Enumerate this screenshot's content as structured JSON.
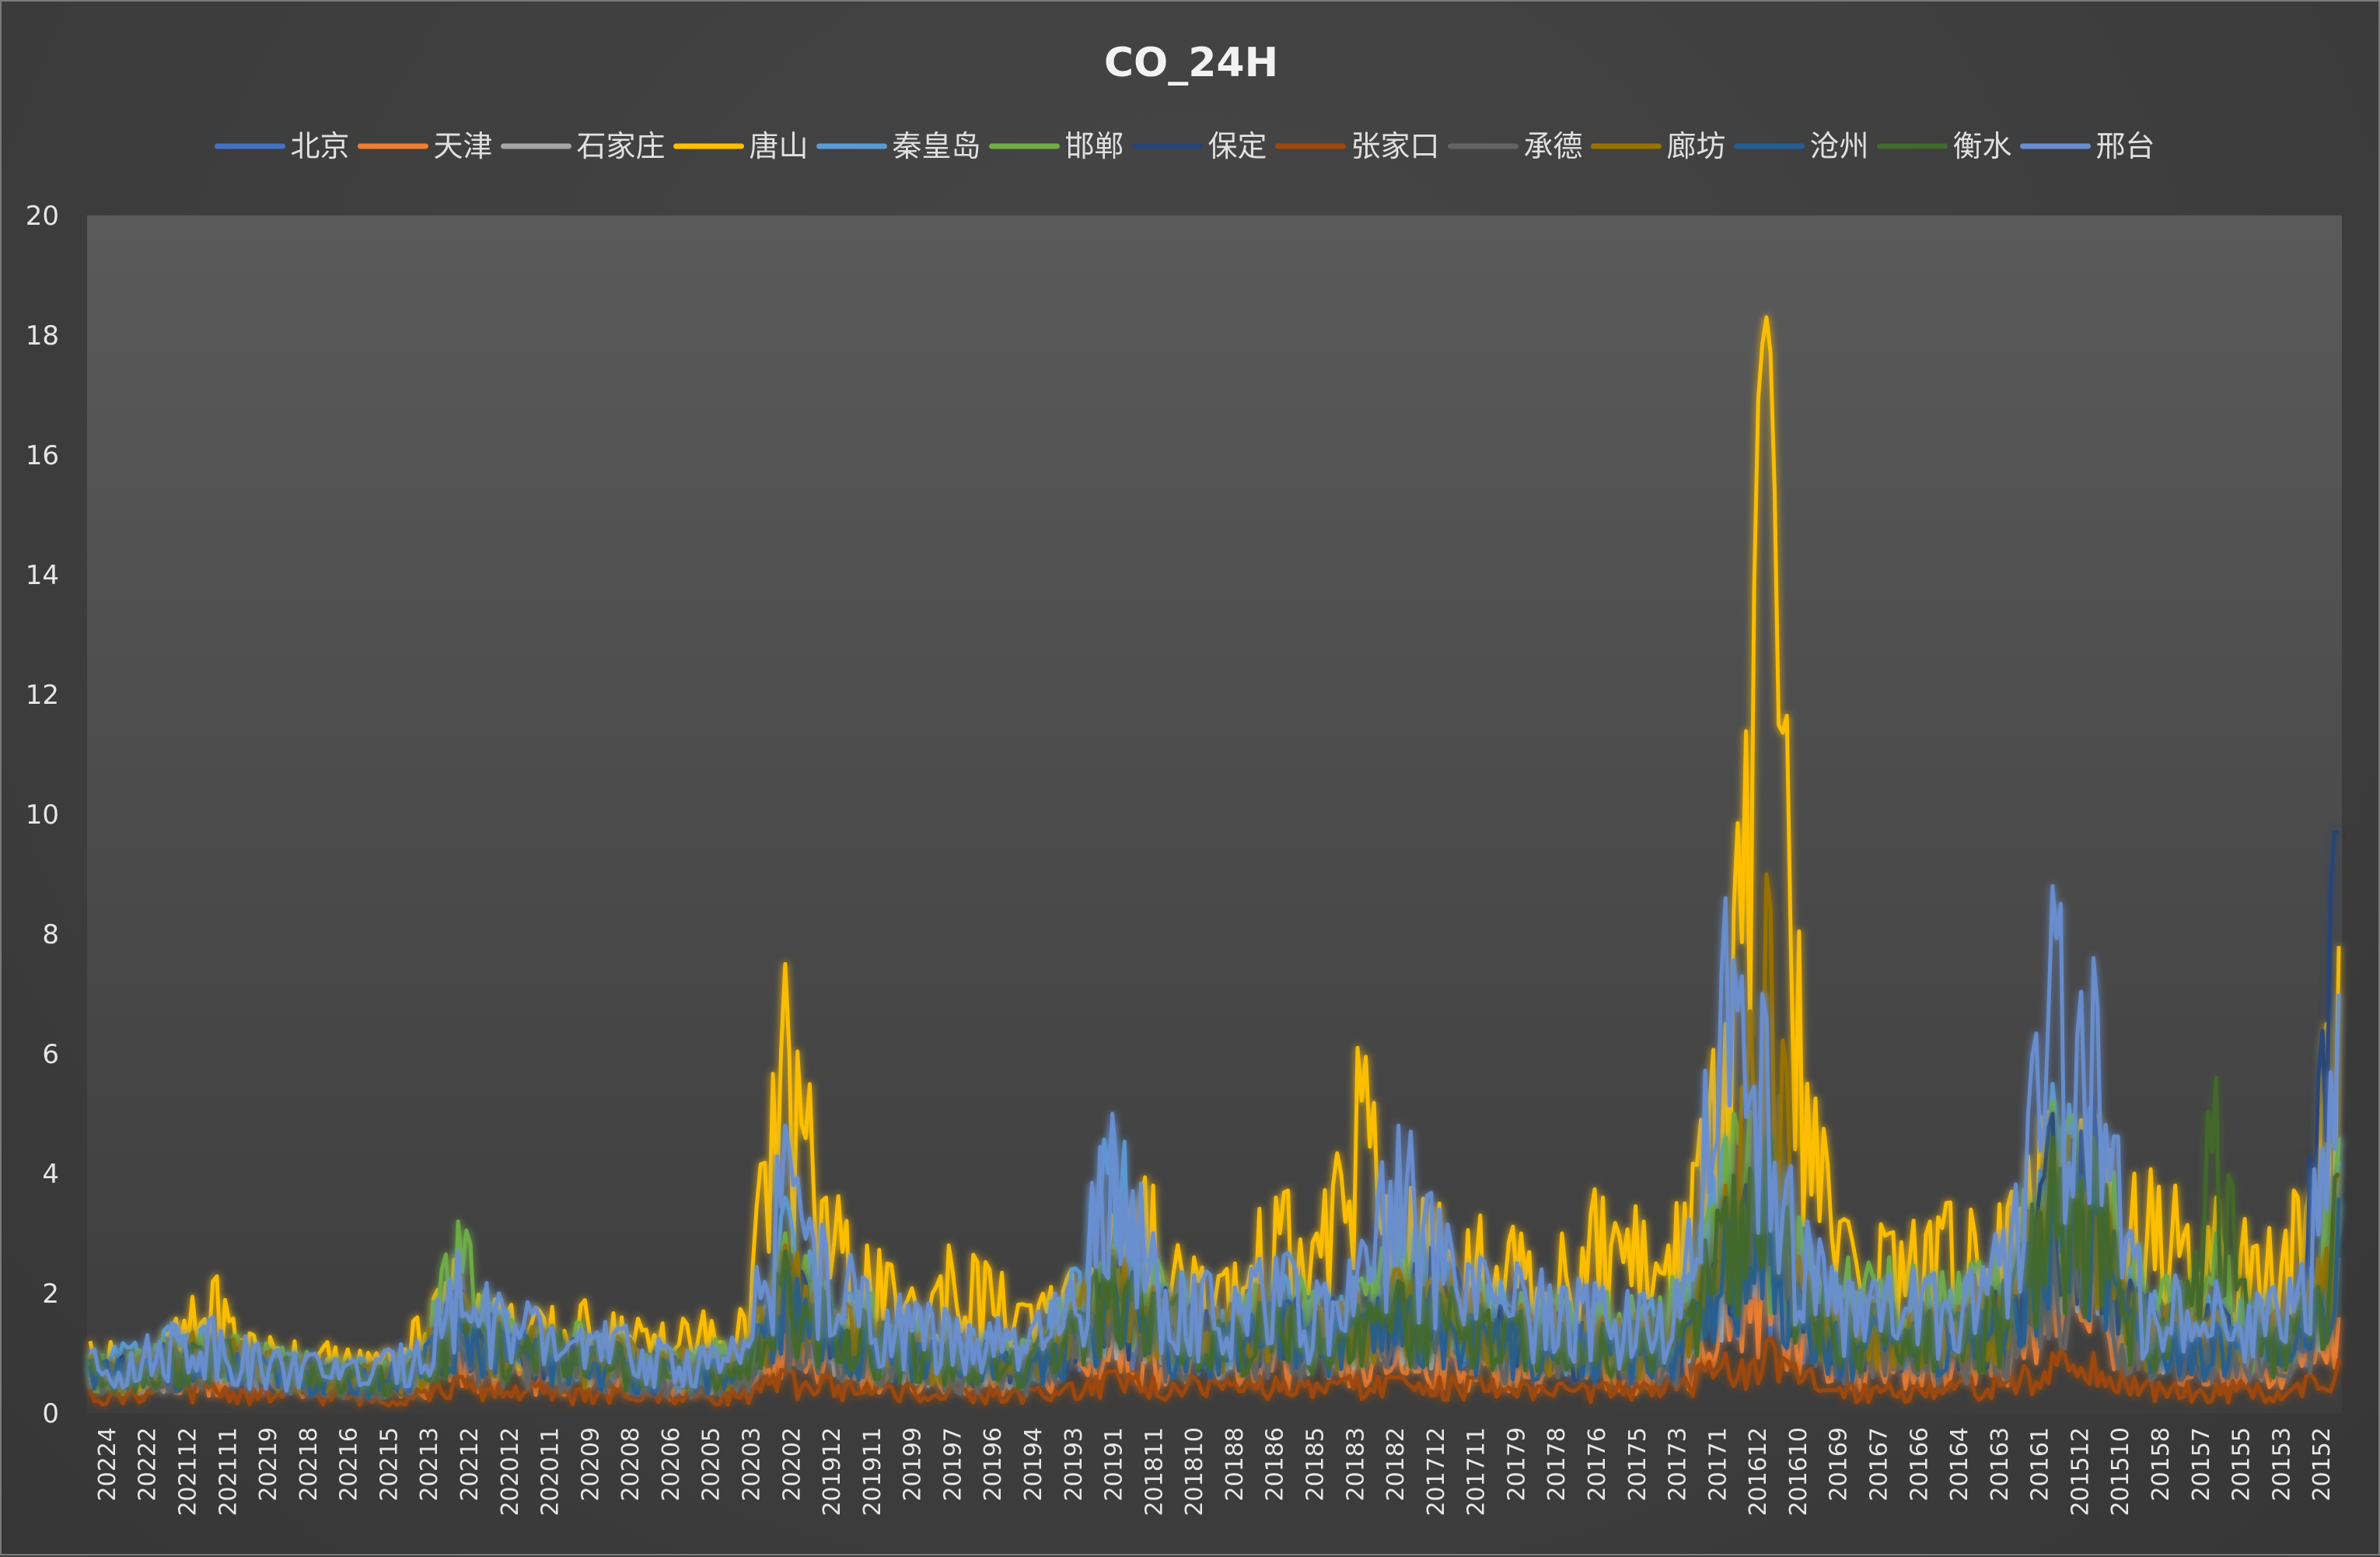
{
  "chart_data": {
    "type": "line",
    "title": "CO_24H",
    "xlabel": "",
    "ylabel": "",
    "ylim": [
      0,
      20
    ],
    "yticks": [
      0,
      2,
      4,
      6,
      8,
      10,
      12,
      14,
      16,
      18,
      20
    ],
    "grid": false,
    "legend_position": "top",
    "x_tick_labels": [
      "20224",
      "20222",
      "202112",
      "202111",
      "20219",
      "20218",
      "20216",
      "20215",
      "20213",
      "20212",
      "202012",
      "202011",
      "20209",
      "20208",
      "20206",
      "20205",
      "20203",
      "20202",
      "201912",
      "201911",
      "20199",
      "20197",
      "20196",
      "20194",
      "20193",
      "20191",
      "201811",
      "201810",
      "20188",
      "20186",
      "20185",
      "20183",
      "20182",
      "201712",
      "201711",
      "20179",
      "20178",
      "20176",
      "20175",
      "20173",
      "20171",
      "201612",
      "201610",
      "20169",
      "20167",
      "20166",
      "20164",
      "20163",
      "20161",
      "201512",
      "201510",
      "20158",
      "20157",
      "20155",
      "20153",
      "20152"
    ],
    "x_order": "descending (most recent on the left)",
    "series": [
      {
        "name": "北京",
        "color": "#4472C4",
        "values": [
          0.9,
          0.8,
          1.1,
          1.2,
          0.9,
          0.8,
          0.7,
          0.7,
          0.9,
          1.8,
          1.5,
          1.2,
          1.0,
          1.1,
          0.8,
          0.8,
          0.9,
          2.5,
          1.6,
          1.5,
          1.2,
          1.1,
          1.0,
          0.9,
          1.6,
          2.4,
          1.8,
          1.6,
          1.5,
          1.9,
          1.5,
          1.7,
          2.0,
          1.9,
          1.7,
          1.6,
          1.4,
          1.4,
          1.3,
          1.6,
          3.2,
          3.0,
          2.0,
          1.5,
          1.6,
          1.5,
          1.7,
          2.0,
          4.5,
          4.6,
          1.8,
          1.5,
          1.5,
          1.3,
          1.4,
          4.2
        ]
      },
      {
        "name": "天津",
        "color": "#ED7D31",
        "values": [
          0.6,
          0.6,
          0.8,
          0.8,
          0.7,
          0.6,
          0.6,
          0.5,
          0.6,
          1.0,
          0.9,
          0.8,
          0.7,
          0.7,
          0.6,
          0.6,
          0.7,
          1.3,
          1.0,
          1.0,
          0.8,
          0.8,
          0.7,
          0.7,
          1.0,
          1.3,
          1.1,
          1.0,
          0.9,
          1.1,
          1.0,
          1.0,
          1.1,
          1.1,
          1.0,
          1.0,
          0.9,
          0.9,
          0.9,
          1.0,
          1.8,
          2.6,
          1.3,
          1.0,
          1.0,
          1.0,
          1.1,
          1.2,
          2.1,
          2.3,
          1.2,
          1.1,
          1.0,
          1.0,
          1.0,
          1.6
        ]
      },
      {
        "name": "石家庄",
        "color": "#A5A5A5",
        "values": [
          0.8,
          0.8,
          1.0,
          1.2,
          0.9,
          0.9,
          0.8,
          0.7,
          0.9,
          1.9,
          1.5,
          1.3,
          1.1,
          1.1,
          0.9,
          0.9,
          1.0,
          2.6,
          1.8,
          1.6,
          1.3,
          1.2,
          1.1,
          1.0,
          1.7,
          2.5,
          2.0,
          1.7,
          1.6,
          2.0,
          1.7,
          1.8,
          2.1,
          2.0,
          1.8,
          1.7,
          1.5,
          1.5,
          1.4,
          1.7,
          3.4,
          3.6,
          2.1,
          1.6,
          1.7,
          1.6,
          1.8,
          2.1,
          4.0,
          4.2,
          1.9,
          1.6,
          1.6,
          1.4,
          1.5,
          3.5
        ]
      },
      {
        "name": "唐山",
        "color": "#FFC000",
        "values": [
          1.2,
          1.0,
          1.4,
          2.2,
          1.3,
          1.2,
          1.1,
          1.0,
          1.6,
          2.6,
          1.9,
          1.7,
          1.8,
          1.6,
          1.5,
          1.7,
          1.6,
          7.5,
          3.6,
          2.8,
          1.9,
          2.8,
          2.4,
          1.8,
          2.4,
          3.3,
          3.8,
          2.6,
          2.5,
          3.6,
          3.0,
          6.1,
          3.4,
          3.5,
          3.3,
          3.0,
          3.0,
          3.6,
          3.2,
          3.5,
          6.5,
          18.3,
          5.5,
          3.2,
          3.0,
          3.2,
          3.4,
          3.7,
          5.0,
          5.0,
          4.0,
          3.8,
          3.6,
          2.8,
          3.6,
          7.8
        ]
      },
      {
        "name": "秦皇岛",
        "color": "#5B9BD5",
        "values": [
          1.0,
          1.1,
          1.4,
          1.3,
          1.0,
          1.0,
          0.9,
          0.8,
          1.0,
          2.2,
          1.7,
          1.4,
          1.3,
          1.2,
          1.0,
          1.0,
          1.1,
          3.6,
          2.2,
          1.8,
          1.6,
          1.4,
          1.2,
          1.1,
          2.4,
          4.8,
          2.6,
          2.0,
          1.8,
          2.2,
          1.9,
          2.1,
          3.4,
          2.6,
          2.2,
          2.0,
          1.8,
          1.8,
          1.7,
          2.1,
          4.6,
          4.4,
          3.0,
          1.9,
          2.0,
          1.9,
          2.1,
          2.5,
          5.5,
          5.0,
          2.2,
          1.9,
          1.9,
          1.7,
          1.8,
          4.6
        ]
      },
      {
        "name": "邯郸",
        "color": "#70AD47",
        "values": [
          1.0,
          1.0,
          1.2,
          1.3,
          1.1,
          1.0,
          0.9,
          0.8,
          1.0,
          3.2,
          1.6,
          1.4,
          1.5,
          1.3,
          1.1,
          1.1,
          1.2,
          3.0,
          2.2,
          1.9,
          1.6,
          1.5,
          1.3,
          1.2,
          1.9,
          2.8,
          2.4,
          2.0,
          1.9,
          2.4,
          2.0,
          2.2,
          3.4,
          2.4,
          2.2,
          2.0,
          1.9,
          1.9,
          1.8,
          2.2,
          4.6,
          4.8,
          2.8,
          2.6,
          2.6,
          2.3,
          2.5,
          2.8,
          5.2,
          5.0,
          2.6,
          2.2,
          3.0,
          1.9,
          2.0,
          4.6
        ]
      },
      {
        "name": "保定",
        "color": "#264478",
        "values": [
          0.9,
          0.9,
          1.1,
          1.2,
          0.9,
          0.9,
          0.8,
          0.7,
          0.9,
          2.0,
          1.5,
          1.3,
          1.1,
          1.1,
          0.9,
          0.9,
          1.0,
          2.7,
          1.8,
          1.6,
          1.3,
          1.2,
          1.1,
          1.0,
          1.7,
          2.6,
          2.0,
          1.7,
          1.6,
          2.0,
          1.7,
          1.8,
          2.2,
          2.6,
          1.8,
          1.7,
          1.5,
          1.5,
          1.4,
          1.7,
          3.6,
          4.2,
          2.2,
          1.7,
          1.8,
          1.7,
          1.8,
          2.2,
          5.0,
          5.2,
          2.0,
          1.7,
          1.7,
          1.5,
          1.6,
          9.7
        ]
      },
      {
        "name": "张家口",
        "color": "#9E480E",
        "values": [
          0.4,
          0.4,
          0.5,
          0.5,
          0.4,
          0.4,
          0.4,
          0.3,
          0.4,
          0.6,
          0.5,
          0.5,
          0.4,
          0.4,
          0.4,
          0.4,
          0.4,
          0.7,
          0.6,
          0.5,
          0.5,
          0.4,
          0.4,
          0.4,
          0.5,
          0.7,
          0.6,
          0.6,
          0.5,
          0.6,
          0.5,
          0.6,
          0.6,
          0.6,
          0.6,
          0.5,
          0.5,
          0.5,
          0.5,
          0.6,
          1.0,
          1.2,
          0.7,
          0.5,
          0.5,
          0.5,
          0.6,
          0.6,
          1.0,
          1.0,
          0.6,
          0.5,
          0.5,
          0.5,
          0.5,
          0.9
        ]
      },
      {
        "name": "承德",
        "color": "#636363",
        "values": [
          0.8,
          0.7,
          0.9,
          1.0,
          0.8,
          0.8,
          0.7,
          0.6,
          0.8,
          1.4,
          1.2,
          1.0,
          0.9,
          0.9,
          0.7,
          0.7,
          0.8,
          2.0,
          1.4,
          1.2,
          1.0,
          0.9,
          0.9,
          0.8,
          1.3,
          1.8,
          1.5,
          1.3,
          1.2,
          1.5,
          1.3,
          1.4,
          1.6,
          1.5,
          1.4,
          1.3,
          1.2,
          1.2,
          1.1,
          1.3,
          2.8,
          7.0,
          1.6,
          1.2,
          1.3,
          1.2,
          1.3,
          1.5,
          3.0,
          3.2,
          1.4,
          1.2,
          1.2,
          1.1,
          1.2,
          2.6
        ]
      },
      {
        "name": "廊坊",
        "color": "#997300",
        "values": [
          0.9,
          0.9,
          1.2,
          1.3,
          1.0,
          0.9,
          0.8,
          0.8,
          1.0,
          2.1,
          1.6,
          1.4,
          1.2,
          1.2,
          1.0,
          1.0,
          1.1,
          2.8,
          2.0,
          1.7,
          1.4,
          1.3,
          1.2,
          1.1,
          1.8,
          2.7,
          2.1,
          1.8,
          1.7,
          2.1,
          1.8,
          2.0,
          2.4,
          2.2,
          2.0,
          1.8,
          1.6,
          1.6,
          1.5,
          1.8,
          3.8,
          9.0,
          2.3,
          1.8,
          1.8,
          1.7,
          1.9,
          2.3,
          4.4,
          4.4,
          2.0,
          1.8,
          1.7,
          1.6,
          1.7,
          4.0
        ]
      },
      {
        "name": "沧州",
        "color": "#255E91",
        "values": [
          0.8,
          0.8,
          1.0,
          1.1,
          0.9,
          0.8,
          0.7,
          0.7,
          0.9,
          1.7,
          1.4,
          1.2,
          1.0,
          1.0,
          0.8,
          0.8,
          0.9,
          2.4,
          1.7,
          1.5,
          1.2,
          1.1,
          1.0,
          0.9,
          1.5,
          2.3,
          1.8,
          1.5,
          1.4,
          1.8,
          1.5,
          1.6,
          1.9,
          1.8,
          1.6,
          1.5,
          1.4,
          1.4,
          1.3,
          1.5,
          3.2,
          4.0,
          1.9,
          1.5,
          1.5,
          1.5,
          1.6,
          1.9,
          4.0,
          4.2,
          1.7,
          1.5,
          1.5,
          1.3,
          1.4,
          3.6
        ]
      },
      {
        "name": "衡水",
        "color": "#43682B",
        "values": [
          0.9,
          0.9,
          1.1,
          1.2,
          1.0,
          0.9,
          0.8,
          0.7,
          0.9,
          1.9,
          1.5,
          1.3,
          1.2,
          1.1,
          0.9,
          0.9,
          1.0,
          2.7,
          1.9,
          1.6,
          1.3,
          1.2,
          1.1,
          1.0,
          1.7,
          2.6,
          2.0,
          1.7,
          1.6,
          2.0,
          1.7,
          1.8,
          2.2,
          2.0,
          1.8,
          1.7,
          1.5,
          1.5,
          1.4,
          1.7,
          3.6,
          4.6,
          2.2,
          1.7,
          1.8,
          1.7,
          1.8,
          2.2,
          4.6,
          4.6,
          2.0,
          1.7,
          5.6,
          1.5,
          1.6,
          4.0
        ]
      },
      {
        "name": "邢台",
        "color": "#698ED0",
        "values": [
          1.0,
          1.0,
          1.5,
          1.6,
          1.1,
          1.0,
          0.9,
          0.9,
          1.2,
          2.7,
          2.0,
          1.6,
          1.4,
          1.4,
          1.1,
          1.1,
          1.2,
          4.8,
          2.8,
          2.2,
          1.8,
          1.6,
          1.5,
          1.4,
          2.2,
          5.0,
          3.0,
          2.3,
          2.1,
          2.6,
          2.2,
          2.4,
          4.8,
          3.4,
          2.6,
          2.3,
          2.1,
          2.1,
          2.0,
          2.4,
          8.6,
          6.6,
          3.2,
          2.2,
          2.3,
          2.2,
          2.4,
          3.0,
          8.8,
          7.6,
          2.6,
          2.3,
          2.2,
          2.0,
          2.1,
          7.0
        ]
      }
    ]
  }
}
